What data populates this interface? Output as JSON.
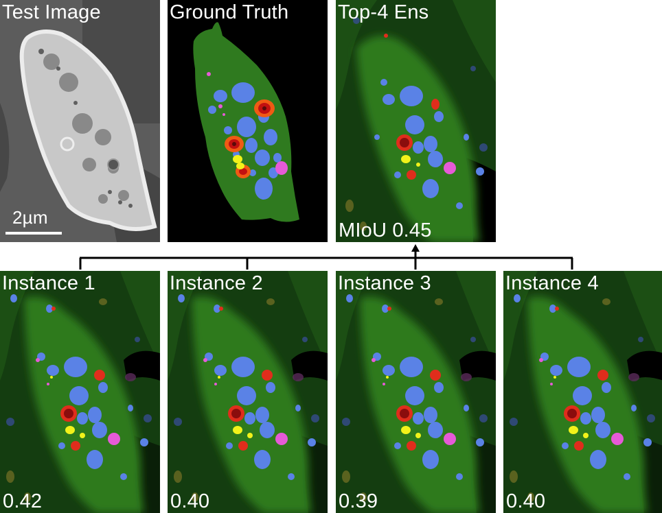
{
  "panels": {
    "test_image": {
      "title": "Test Image",
      "scale_label": "2µm"
    },
    "ground_truth": {
      "title": "Ground Truth"
    },
    "ensemble": {
      "title": "Top-4 Ens",
      "score": "MIoU 0.45"
    },
    "instance1": {
      "title": "Instance 1",
      "score": "0.42"
    },
    "instance2": {
      "title": "Instance 2",
      "score": "0.40"
    },
    "instance3": {
      "title": "Instance 3",
      "score": "0.39"
    },
    "instance4": {
      "title": "Instance 4",
      "score": "0.40"
    }
  },
  "colors": {
    "cytoplasm": "#2f7a1f",
    "background_tissue": "#143d10",
    "nucleus_blue": "#5a82e6",
    "red_organelle": "#e02d1c",
    "orange_ring": "#f05a14",
    "yellow": "#f2f21a",
    "magenta": "#e65ad7",
    "dark": "#000000"
  }
}
